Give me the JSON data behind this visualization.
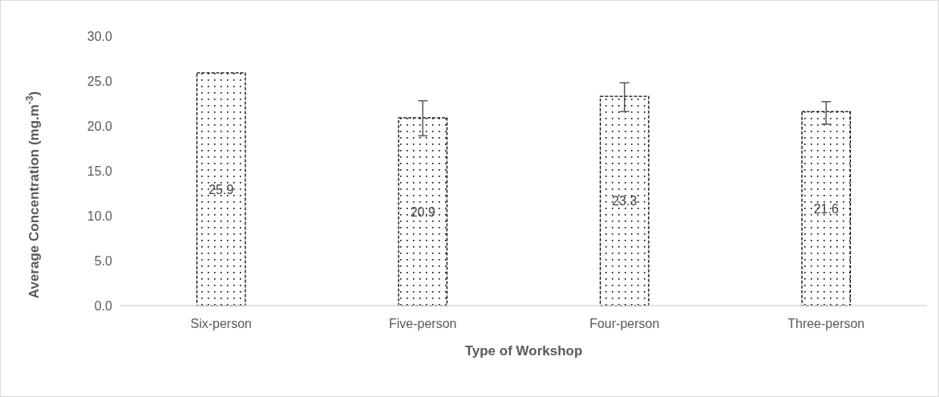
{
  "chart_data": {
    "type": "bar",
    "xlabel": "Type of Workshop",
    "ylabel": "Average Concentration (mg.m$^{-3}$)",
    "categories": [
      "Six-person",
      "Five-person",
      "Four-person",
      "Three-person"
    ],
    "values": [
      25.9,
      20.9,
      23.3,
      21.6
    ],
    "errors": [
      null,
      [
        18.9,
        22.8
      ],
      [
        21.6,
        24.8
      ],
      [
        20.2,
        22.7
      ]
    ],
    "color": "#000000",
    "data_labels": true,
    "ylim": [
      0,
      30
    ],
    "yticks": [
      {
        "value": 0,
        "label": "0.0"
      },
      {
        "value": 5,
        "label": "5.0"
      },
      {
        "value": 10,
        "label": "10.0"
      },
      {
        "value": 15,
        "label": "15.0"
      },
      {
        "value": 20,
        "label": "20.0"
      },
      {
        "value": 25,
        "label": "25.0"
      },
      {
        "value": 30,
        "label": "30.0"
      }
    ],
    "grid": false
  }
}
